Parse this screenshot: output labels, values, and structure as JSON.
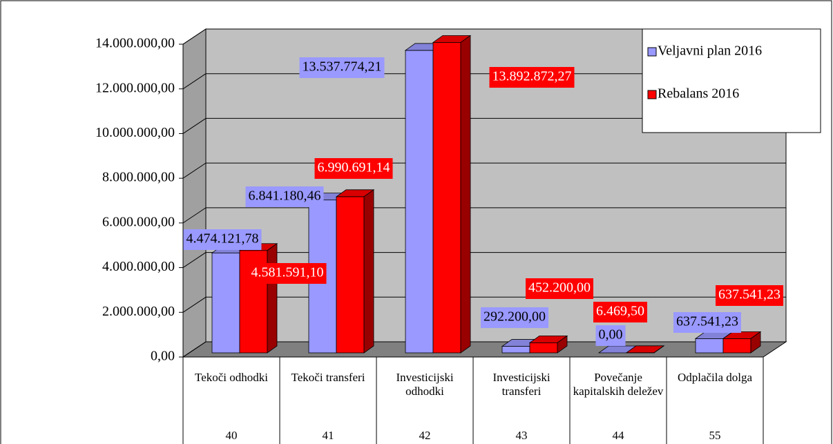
{
  "chart_data": {
    "type": "bar3d",
    "categories": [
      "Tekoči odhodki",
      "Tekoči transferi",
      "Investicijski odhodki",
      "Investicijski transferi",
      "Povečanje kapitalskih deležev",
      "Odplačila dolga"
    ],
    "category_codes": [
      "40",
      "41",
      "42",
      "43",
      "44",
      "55"
    ],
    "series": [
      {
        "name": "Veljavni plan 2016",
        "color": "#9999ff",
        "values": [
          4474121.78,
          6841180.46,
          13537774.21,
          292200,
          0,
          637541.23
        ],
        "value_labels": [
          "4.474.121,78",
          "6.841.180,46",
          "13.537.774,21",
          "292.200,00",
          "0,00",
          "637.541,23"
        ]
      },
      {
        "name": "Rebalans 2016",
        "color": "#ff0000",
        "values": [
          4581591.1,
          6990691.14,
          13892872.27,
          452200,
          6469.5,
          637541.23
        ],
        "value_labels": [
          "4.581.591,10",
          "6.990.691,14",
          "13.892.872,27",
          "452.200,00",
          "6.469,50",
          "637.541,23"
        ]
      }
    ],
    "ylim": [
      0,
      14000000
    ],
    "yticks": [
      {
        "value": 0,
        "label": "0,00"
      },
      {
        "value": 2000000,
        "label": "2.000.000,00"
      },
      {
        "value": 4000000,
        "label": "4.000.000,00"
      },
      {
        "value": 6000000,
        "label": "6.000.000,00"
      },
      {
        "value": 8000000,
        "label": "8.000.000,00"
      },
      {
        "value": 10000000,
        "label": "10.000.000,00"
      },
      {
        "value": 12000000,
        "label": "12.000.000,00"
      },
      {
        "value": 14000000,
        "label": "14.000.000,00"
      }
    ],
    "grid": true,
    "legend": "top-right"
  }
}
